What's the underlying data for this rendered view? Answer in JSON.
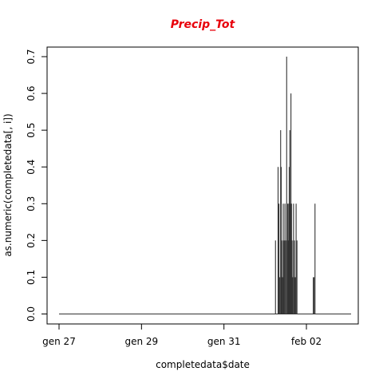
{
  "chart_data": {
    "type": "bar",
    "title": "Precip_Tot",
    "xlabel": "completedata$date",
    "ylabel": "as.numeric(completedata[, i])",
    "x_range_days": [
      "2022-01-27T00:00",
      "2022-02-03T00:00"
    ],
    "ylim": [
      0,
      0.7
    ],
    "x_ticks": [
      {
        "date": "2022-01-27",
        "label": "gen 27"
      },
      {
        "date": "2022-01-29",
        "label": "gen 29"
      },
      {
        "date": "2022-01-31",
        "label": "gen 31"
      },
      {
        "date": "2022-02-02",
        "label": "feb 02"
      }
    ],
    "y_ticks": [
      {
        "value": 0.0,
        "label": "0.0"
      },
      {
        "value": 0.1,
        "label": "0.1"
      },
      {
        "value": 0.2,
        "label": "0.2"
      },
      {
        "value": 0.3,
        "label": "0.3"
      },
      {
        "value": 0.4,
        "label": "0.4"
      },
      {
        "value": 0.5,
        "label": "0.5"
      },
      {
        "value": 0.6,
        "label": "0.6"
      },
      {
        "value": 0.7,
        "label": "0.7"
      }
    ],
    "grid": false,
    "line_color": "#333333",
    "title_color": "#e8000b",
    "baseline_start": "2022-01-27T00:00",
    "baseline_end": "2022-02-03T02:00",
    "points": [
      {
        "t": "2022-02-01T06:00",
        "v": 0.2
      },
      {
        "t": "2022-02-01T07:30",
        "v": 0.4
      },
      {
        "t": "2022-02-01T08:00",
        "v": 0.3
      },
      {
        "t": "2022-02-01T08:30",
        "v": 0.1
      },
      {
        "t": "2022-02-01T09:00",
        "v": 0.5
      },
      {
        "t": "2022-02-01T09:20",
        "v": 0.4
      },
      {
        "t": "2022-02-01T09:40",
        "v": 0.2
      },
      {
        "t": "2022-02-01T10:00",
        "v": 0.1
      },
      {
        "t": "2022-02-01T10:30",
        "v": 0.3
      },
      {
        "t": "2022-02-01T11:00",
        "v": 0.2
      },
      {
        "t": "2022-02-01T11:30",
        "v": 0.3
      },
      {
        "t": "2022-02-01T12:00",
        "v": 0.2
      },
      {
        "t": "2022-02-01T12:30",
        "v": 0.7
      },
      {
        "t": "2022-02-01T13:00",
        "v": 0.3
      },
      {
        "t": "2022-02-01T13:20",
        "v": 0.2
      },
      {
        "t": "2022-02-01T13:40",
        "v": 0.3
      },
      {
        "t": "2022-02-01T14:00",
        "v": 0.4
      },
      {
        "t": "2022-02-01T14:20",
        "v": 0.5
      },
      {
        "t": "2022-02-01T14:40",
        "v": 0.3
      },
      {
        "t": "2022-02-01T15:00",
        "v": 0.6
      },
      {
        "t": "2022-02-01T15:20",
        "v": 0.3
      },
      {
        "t": "2022-02-01T15:40",
        "v": 0.2
      },
      {
        "t": "2022-02-01T16:00",
        "v": 0.1
      },
      {
        "t": "2022-02-01T16:30",
        "v": 0.3
      },
      {
        "t": "2022-02-01T17:00",
        "v": 0.2
      },
      {
        "t": "2022-02-01T17:30",
        "v": 0.1
      },
      {
        "t": "2022-02-01T18:00",
        "v": 0.3
      },
      {
        "t": "2022-02-01T18:30",
        "v": 0.2
      },
      {
        "t": "2022-02-02T04:00",
        "v": 0.1
      },
      {
        "t": "2022-02-02T04:30",
        "v": 0.1
      },
      {
        "t": "2022-02-02T05:00",
        "v": 0.3
      }
    ]
  }
}
